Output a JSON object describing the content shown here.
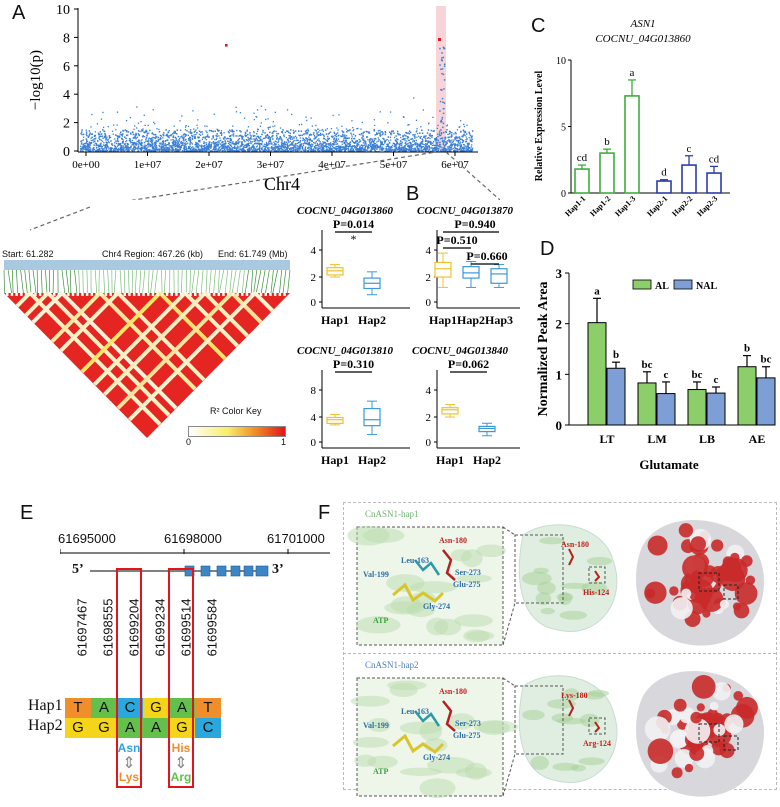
{
  "panels": {
    "A": "A",
    "B": "B",
    "C": "C",
    "D": "D",
    "E": "E",
    "F": "F"
  },
  "manhattan": {
    "ylabel": "−log10(p)",
    "yticks": [
      "0",
      "2",
      "4",
      "6",
      "8",
      "10"
    ],
    "xticks": [
      "0e+00",
      "1e+07",
      "2e+07",
      "3e+07",
      "4e+07",
      "5e+07",
      "6e+07"
    ],
    "xlabel": "Chr4",
    "color": "#3a7fd5",
    "highlight_color": "#f6c9cf"
  },
  "ld": {
    "start": "Start: 61.282",
    "region": "Chr4 Region: 467.26 (kb)",
    "end": "End: 61.749 (Mb)",
    "color_key_title": "R² Color Key",
    "color_key_min": "0",
    "color_key_max": "1"
  },
  "boxplots": [
    {
      "title": "COCNU_04G013860",
      "groups": [
        "Hap1",
        "Hap2"
      ],
      "pvals": [
        "P=0.014"
      ],
      "star": "*",
      "yticks": [
        "0",
        "2",
        "4"
      ]
    },
    {
      "title": "COCNU_04G013870",
      "groups": [
        "Hap1",
        "Hap2",
        "Hap3"
      ],
      "pvals": [
        "P=0.940",
        "P=0.510",
        "P=0.660"
      ],
      "star": "",
      "yticks": [
        "0",
        "2",
        "4"
      ]
    },
    {
      "title": "COCNU_04G013810",
      "groups": [
        "Hap1",
        "Hap2"
      ],
      "pvals": [
        "P=0.310"
      ],
      "star": "",
      "yticks": [
        "0",
        "4",
        "8"
      ]
    },
    {
      "title": "COCNU_04G013840",
      "groups": [
        "Hap1",
        "Hap2"
      ],
      "pvals": [
        "P=0.062"
      ],
      "star": "",
      "yticks": [
        "0",
        "2",
        "4"
      ]
    }
  ],
  "chart_data": [
    {
      "type": "bar",
      "title": "ASN1",
      "subtitle": "COCNU_04G013860",
      "ylabel": "Relative Expression Level",
      "ylim": [
        0,
        10
      ],
      "yticks": [
        "0",
        "5",
        "10"
      ],
      "categories": [
        "Hap1-1",
        "Hap1-2",
        "Hap1-3",
        "Hap2-1",
        "Hap2-2",
        "Hap2-3"
      ],
      "values": [
        1.8,
        3.0,
        7.3,
        0.9,
        2.1,
        1.5
      ],
      "errors": [
        0.3,
        0.3,
        1.2,
        0.1,
        0.7,
        0.5
      ],
      "letters": [
        "cd",
        "b",
        "a",
        "d",
        "c",
        "cd"
      ],
      "colors": [
        "#3dae3d",
        "#3dae3d",
        "#3dae3d",
        "#2b3ea8",
        "#2b3ea8",
        "#2b3ea8"
      ]
    },
    {
      "type": "bar",
      "ylabel": "Normalized Peak Area",
      "xlabel": "Glutamate",
      "ylim": [
        0,
        3
      ],
      "yticks": [
        "0",
        "1",
        "2",
        "3"
      ],
      "categories": [
        "LT",
        "LM",
        "LB",
        "AE"
      ],
      "series": [
        {
          "name": "AL",
          "values": [
            2.02,
            0.83,
            0.7,
            1.15
          ],
          "errors": [
            0.48,
            0.22,
            0.15,
            0.22
          ],
          "letters": [
            "a",
            "bc",
            "bc",
            "b"
          ],
          "color": "#8ccf6a"
        },
        {
          "name": "NAL",
          "values": [
            1.12,
            0.62,
            0.63,
            0.93
          ],
          "errors": [
            0.12,
            0.23,
            0.12,
            0.22
          ],
          "letters": [
            "b",
            "c",
            "c",
            "bc"
          ],
          "color": "#7e9fd6"
        }
      ],
      "legend": "top-right"
    }
  ],
  "gene": {
    "coords": [
      "61695000",
      "61698000",
      "61701000"
    ],
    "five": "5’",
    "three": "3’"
  },
  "snps": {
    "positions": [
      "61697467",
      "61698555",
      "61699204",
      "61699234",
      "61699514",
      "61699584"
    ],
    "hap1_label": "Hap1",
    "hap2_label": "Hap2",
    "hap1": [
      "T",
      "A",
      "C",
      "G",
      "A",
      "T"
    ],
    "hap2": [
      "G",
      "G",
      "A",
      "A",
      "G",
      "C"
    ],
    "base_colors": {
      "A": "#63c04a",
      "C": "#2aa7dc",
      "G": "#f5d51a",
      "T": "#f18e2c"
    },
    "aa1_top": "Asn",
    "aa1_bottom": "Lys",
    "aa2_top": "His",
    "aa2_bottom": "Arg"
  },
  "structure": {
    "hap1_title": "CnASN1-hap1",
    "hap2_title": "CnASN1-hap2",
    "hap1_residues": [
      "Asn-180",
      "Leu-163",
      "Val-199",
      "Ser-273",
      "Glu-275",
      "Gly-274",
      "ATP"
    ],
    "hap2_residues": [
      "Asn-180",
      "Leu-163",
      "Val-199",
      "Ser-273",
      "Glu-275",
      "Gly-274",
      "ATP"
    ],
    "hap1_site": [
      "Asn-180",
      "His-124"
    ],
    "hap2_site": [
      "Lys-180",
      "Arg-124"
    ]
  }
}
